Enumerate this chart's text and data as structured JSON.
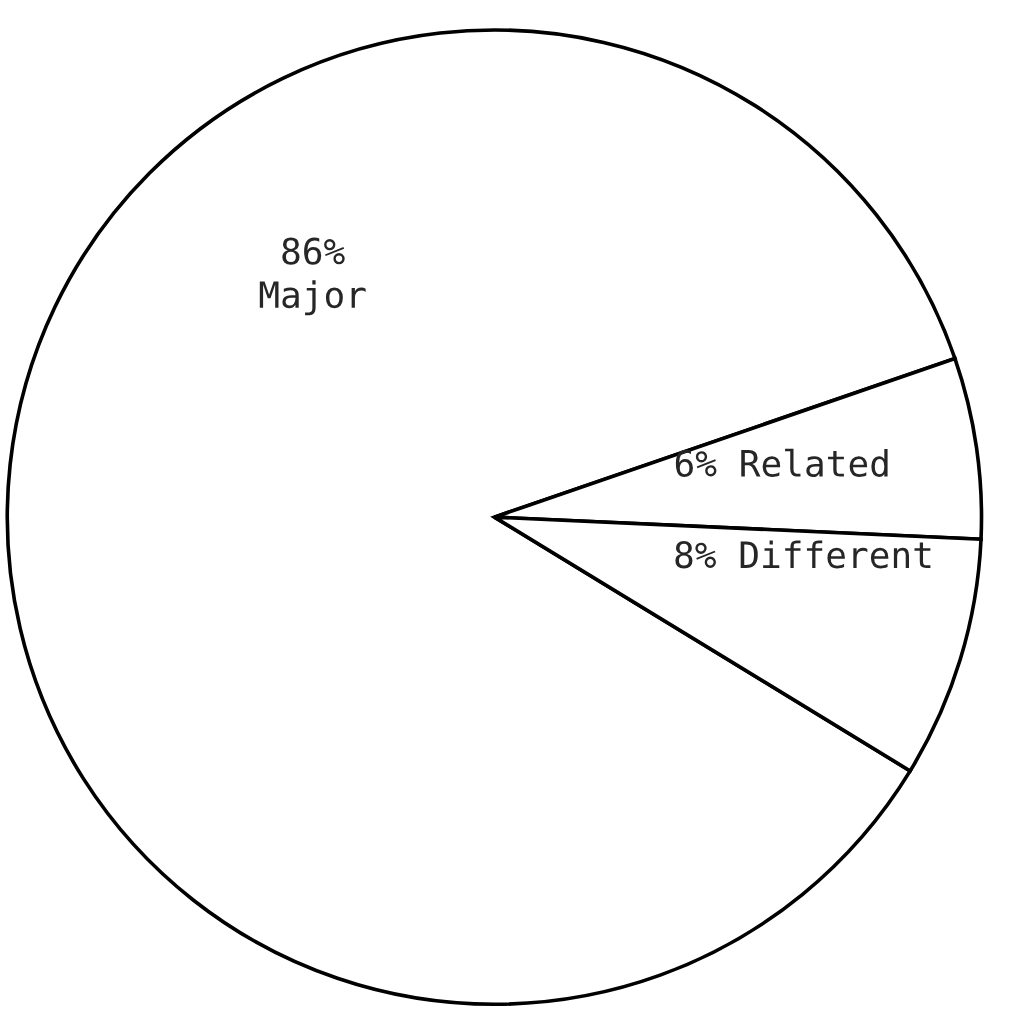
{
  "chart_data": {
    "type": "pie",
    "categories": [
      "Major",
      "Related",
      "Different"
    ],
    "values": [
      86,
      6,
      8
    ],
    "value_labels": [
      "86%",
      "6%",
      "8%"
    ],
    "colors": [
      "#ffffff",
      "#ffffff",
      "#ffffff"
    ],
    "legend": false
  }
}
